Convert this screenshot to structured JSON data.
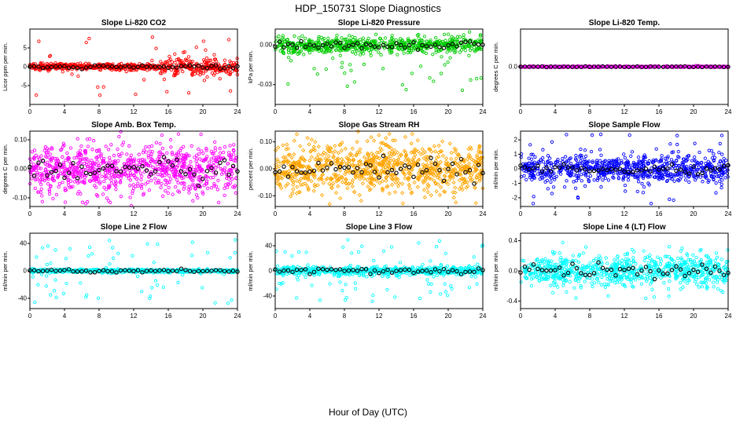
{
  "page": {
    "title": "HDP_150731  Slope Diagnostics",
    "xlabel": "Hour of Day (UTC)"
  },
  "chart_data": [
    {
      "type": "scatter",
      "title": "Slope Li-820 CO2",
      "ylabel": "Licor ppm per min.",
      "color": "#FF0000",
      "marker": "circle",
      "xlim": [
        0,
        24
      ],
      "xticks": [
        0,
        4,
        8,
        12,
        16,
        20,
        24
      ],
      "ylim": [
        -10,
        10
      ],
      "yticks": [
        5,
        0,
        -5
      ],
      "ytick_labels": [
        "5",
        "0",
        "-5"
      ],
      "n": 700,
      "mean": 0,
      "sd": 0.4,
      "outlier_frac": 0.04,
      "outlier_max": 8,
      "outlier_sign": "both",
      "burst": {
        "from": 15,
        "mult": 3
      },
      "seed": 11,
      "overlay": {
        "interval": 0.5,
        "sd": 0.25,
        "color": "#000000"
      },
      "summary": "CO2 slope values tight about 0 ppm/min, noisier after hour 15 with outliers to about ±8; black circles are half-hourly means near 0"
    },
    {
      "type": "scatter",
      "title": "Slope Li-820 Pressure",
      "ylabel": "kPa per min.",
      "color": "#00CC00",
      "marker": "circle",
      "xlim": [
        0,
        24
      ],
      "xticks": [
        0,
        4,
        8,
        12,
        16,
        20,
        24
      ],
      "ylim": [
        -0.045,
        0.012
      ],
      "yticks": [
        0,
        -0.03
      ],
      "ytick_labels": [
        "0.00",
        "-0.03"
      ],
      "n": 700,
      "mean": 0,
      "sd": 0.003,
      "outlier_frac": 0.05,
      "outlier_max": 0.035,
      "outlier_sign": "neg",
      "seed": 22,
      "overlay": {
        "interval": 0.5,
        "sd": 0.002,
        "color": "#000000"
      },
      "summary": "Pressure slope band near 0.00 kPa/min with scattered negative outliers down to about -0.035; black circles are half-hourly means near 0"
    },
    {
      "type": "scatter",
      "title": "Slope Li-820 Temp.",
      "ylabel": "degrees C per min.",
      "color": "#FF00FF",
      "marker": "circle",
      "xlim": [
        0,
        24
      ],
      "xticks": [
        0,
        4,
        8,
        12,
        16,
        20,
        24
      ],
      "ylim": [
        -1,
        1
      ],
      "yticks": [
        0
      ],
      "ytick_labels": [
        "0.0"
      ],
      "n": 600,
      "mean": 0,
      "sd": 0.008,
      "outlier_frac": 0,
      "outlier_max": 0,
      "outlier_sign": "both",
      "seed": 33,
      "overlay": {
        "interval": 0.5,
        "sd": 0.005,
        "color": "#000000"
      },
      "summary": "Cell temperature slope essentially constant at 0.0 C/min all day; black half-hourly means overlie the flat magenta line"
    },
    {
      "type": "scatter",
      "title": "Slope Amb. Box Temp.",
      "ylabel": "degrees C per min.",
      "color": "#FF00FF",
      "marker": "circle",
      "xlim": [
        0,
        24
      ],
      "xticks": [
        0,
        4,
        8,
        12,
        16,
        20,
        24
      ],
      "ylim": [
        -0.13,
        0.13
      ],
      "yticks": [
        0.1,
        0,
        -0.1
      ],
      "ytick_labels": [
        "0.10",
        "0.00",
        "-0.10"
      ],
      "n": 900,
      "mean": 0,
      "sd": 0.045,
      "outlier_frac": 0.02,
      "outlier_max": 0.12,
      "outlier_sign": "both",
      "seed": 44,
      "overlay": {
        "interval": 0.5,
        "sd": 0.02,
        "color": "#000000"
      },
      "summary": "Ambient box temperature slope forms a dense magenta cloud between about -0.10 and +0.10 C/min centered on 0; black circles are half-hourly means near 0"
    },
    {
      "type": "scatter",
      "title": "Slope Gas Stream RH",
      "ylabel": "percent per min.",
      "color": "#FFA500",
      "marker": "diamond",
      "xlim": [
        0,
        24
      ],
      "xticks": [
        0,
        4,
        8,
        12,
        16,
        20,
        24
      ],
      "ylim": [
        -0.14,
        0.14
      ],
      "yticks": [
        0.1,
        0,
        -0.1
      ],
      "ytick_labels": [
        "0.10",
        "0.00",
        "-0.10"
      ],
      "n": 900,
      "mean": 0,
      "sd": 0.045,
      "outlier_frac": 0.03,
      "outlier_max": 0.13,
      "outlier_sign": "both",
      "seed": 55,
      "overlay": {
        "interval": 0.5,
        "sd": 0.02,
        "color": "#000000"
      },
      "summary": "Gas stream RH slope: dense orange cloud roughly -0.10 to +0.10 %/min centered on 0; black circles are half-hourly means near 0"
    },
    {
      "type": "scatter",
      "title": "Slope Sample Flow",
      "ylabel": "ml/min per min.",
      "color": "#0000FF",
      "marker": "circle",
      "xlim": [
        0,
        24
      ],
      "xticks": [
        0,
        4,
        8,
        12,
        16,
        20,
        24
      ],
      "ylim": [
        -2.6,
        2.6
      ],
      "yticks": [
        2,
        1,
        0,
        -1,
        -2
      ],
      "ytick_labels": [
        "2",
        "1",
        "0",
        "-1",
        "-2"
      ],
      "n": 800,
      "mean": 0,
      "sd": 0.45,
      "outlier_frac": 0.06,
      "outlier_max": 2.4,
      "outlier_sign": "both",
      "seed": 66,
      "overlay": {
        "interval": 0.5,
        "sd": 0.15,
        "color": "#000000"
      },
      "summary": "Sample flow slope: blue cloud concentrated near 0 ml/min/min with spread to about ±2; black circles are half-hourly means near 0"
    },
    {
      "type": "scatter",
      "title": "Slope Line 2 Flow",
      "ylabel": "ml/min per min.",
      "color": "#00FFFF",
      "marker": "circle",
      "xlim": [
        0,
        24
      ],
      "xticks": [
        0,
        4,
        8,
        12,
        16,
        20,
        24
      ],
      "ylim": [
        -55,
        55
      ],
      "yticks": [
        40,
        0,
        -40
      ],
      "ytick_labels": [
        "40",
        "0",
        "-40"
      ],
      "n": 700,
      "mean": 0,
      "sd": 1.2,
      "outlier_frac": 0.1,
      "outlier_max": 48,
      "outlier_sign": "both",
      "seed": 77,
      "overlay": {
        "interval": 0.5,
        "sd": 1,
        "color": "#000000"
      },
      "summary": "Line 2 flow slope: tight cyan baseline at 0 with bursts of outliers to about ±45 ml/min/min; black circles are half-hourly means on the zero line"
    },
    {
      "type": "scatter",
      "title": "Slope Line 3 Flow",
      "ylabel": "ml/min per min.",
      "color": "#00FFFF",
      "marker": "circle",
      "xlim": [
        0,
        24
      ],
      "xticks": [
        0,
        4,
        8,
        12,
        16,
        20,
        24
      ],
      "ylim": [
        -60,
        60
      ],
      "yticks": [
        40,
        0,
        -40
      ],
      "ytick_labels": [
        "40",
        "0",
        "-40"
      ],
      "n": 700,
      "mean": 0,
      "sd": 3.5,
      "outlier_frac": 0.12,
      "outlier_max": 50,
      "outlier_sign": "both",
      "seed": 88,
      "overlay": {
        "interval": 0.5,
        "sd": 2,
        "color": "#000000"
      },
      "summary": "Line 3 flow slope: cyan cloud around 0 with frequent excursions to about ±50 ml/min/min, densest mid-day; black circles are half-hourly means near 0"
    },
    {
      "type": "scatter",
      "title": "Slope Line 4 (LT) Flow",
      "ylabel": "ml/min per min.",
      "color": "#00FFFF",
      "marker": "circle",
      "xlim": [
        0,
        24
      ],
      "xticks": [
        0,
        4,
        8,
        12,
        16,
        20,
        24
      ],
      "ylim": [
        -0.5,
        0.5
      ],
      "yticks": [
        0.4,
        0,
        -0.4
      ],
      "ytick_labels": [
        "0.4",
        "0.0",
        "-0.4"
      ],
      "n": 800,
      "mean": 0,
      "sd": 0.1,
      "outlier_frac": 0.05,
      "outlier_max": 0.38,
      "outlier_sign": "both",
      "seed": 99,
      "overlay": {
        "interval": 0.5,
        "sd": 0.05,
        "color": "#000000"
      },
      "summary": "Line 4 (LT) flow slope: dense cyan band roughly ±0.2 ml/min/min about 0 with outliers to ±0.4; black circles are half-hourly means near 0"
    }
  ]
}
